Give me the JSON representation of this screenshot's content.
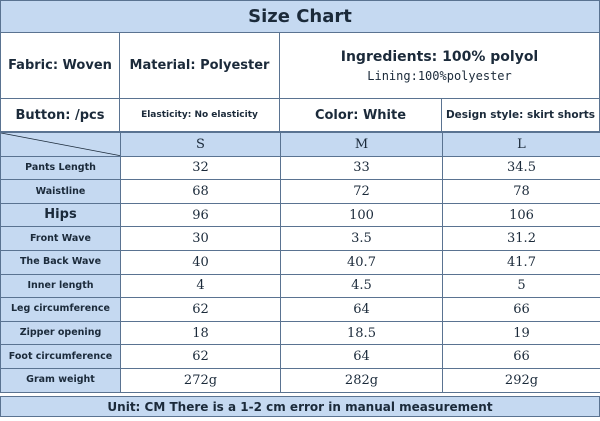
{
  "title": "Size Chart",
  "info": {
    "fabric": "Fabric: Woven",
    "material": "Material: Polyester",
    "ingredients": "Ingredients: 100% polyol",
    "lining": "Lining:100%polyester",
    "button": "Button: /pcs",
    "elasticity": "Elasticity: No elasticity",
    "color": "Color: White",
    "design_style": "Design style: skirt shorts"
  },
  "sizes": [
    "S",
    "M",
    "L"
  ],
  "rows": [
    {
      "label": "Pants Length",
      "values": [
        "32",
        "33",
        "34.5"
      ]
    },
    {
      "label": "Waistline",
      "values": [
        "68",
        "72",
        "78"
      ]
    },
    {
      "label": "Hips",
      "values": [
        "96",
        "100",
        "106"
      ]
    },
    {
      "label": "Front Wave",
      "values": [
        "30",
        "3.5",
        "31.2"
      ]
    },
    {
      "label": "The Back Wave",
      "values": [
        "40",
        "40.7",
        "41.7"
      ]
    },
    {
      "label": "Inner length",
      "values": [
        "4",
        "4.5",
        "5"
      ]
    },
    {
      "label": "Leg circumference",
      "values": [
        "62",
        "64",
        "66"
      ]
    },
    {
      "label": "Zipper opening",
      "values": [
        "18",
        "18.5",
        "19"
      ]
    },
    {
      "label": "Foot circumference",
      "values": [
        "62",
        "64",
        "66"
      ]
    },
    {
      "label": "Gram weight",
      "values": [
        "272g",
        "282g",
        "292g"
      ]
    }
  ],
  "footer": "Unit: CM There is a 1-2 cm error in manual measurement",
  "colors": {
    "header_fill": "#c5d9f1",
    "border": "#5a7391",
    "text": "#1b2a3a"
  }
}
